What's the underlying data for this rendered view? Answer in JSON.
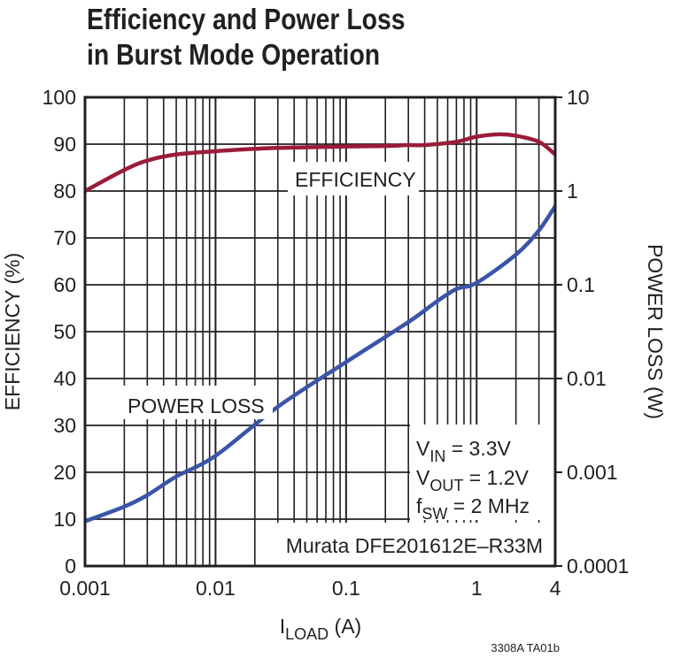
{
  "chart_data": {
    "type": "line",
    "title_line1": "Efficiency and Power Loss",
    "title_line2": "in Burst Mode Operation",
    "xlabel_main": "I",
    "xlabel_sub": "LOAD",
    "xlabel_unit": " (A)",
    "ylabel_left": "EFFICIENCY (%)",
    "ylabel_right": "POWER LOSS (W)",
    "x_scale": "log",
    "xlim": [
      0.001,
      4
    ],
    "ylim_left": [
      0,
      100
    ],
    "ylim_right": [
      0.0001,
      10
    ],
    "y_right_scale": "log",
    "x_ticks": [
      {
        "v": 0.001,
        "label": "0.001"
      },
      {
        "v": 0.01,
        "label": "0.01"
      },
      {
        "v": 0.1,
        "label": "0.1"
      },
      {
        "v": 1,
        "label": "1"
      },
      {
        "v": 4,
        "label": "4"
      }
    ],
    "y_left_ticks": [
      "0",
      "10",
      "20",
      "30",
      "40",
      "50",
      "60",
      "70",
      "80",
      "90",
      "100"
    ],
    "y_right_ticks": [
      {
        "v": 0.0001,
        "label": "0.0001"
      },
      {
        "v": 0.001,
        "label": "0.001"
      },
      {
        "v": 0.01,
        "label": "0.01"
      },
      {
        "v": 0.1,
        "label": "0.1"
      },
      {
        "v": 1,
        "label": "1"
      },
      {
        "v": 10,
        "label": "10"
      }
    ],
    "grid": true,
    "colors": {
      "efficiency": "#9b1b3a",
      "power_loss": "#3a55a8",
      "grid": "#231f20"
    },
    "series": [
      {
        "name": "EFFICIENCY",
        "axis": "left",
        "x": [
          0.001,
          0.002,
          0.003,
          0.005,
          0.01,
          0.02,
          0.03,
          0.1,
          0.2,
          0.3,
          0.4,
          0.7,
          1,
          1.5,
          2,
          3,
          4
        ],
        "y": [
          80,
          84.5,
          86.5,
          87.8,
          88.5,
          89,
          89.2,
          89.5,
          89.6,
          89.8,
          89.8,
          90.5,
          91.6,
          92.1,
          91.8,
          90.5,
          87.8
        ]
      },
      {
        "name": "POWER LOSS",
        "axis": "right",
        "x": [
          0.001,
          0.002,
          0.003,
          0.005,
          0.01,
          0.03,
          0.1,
          0.3,
          0.5,
          0.7,
          1,
          2,
          3,
          4
        ],
        "y": [
          0.0003,
          0.00043,
          0.00057,
          0.0009,
          0.0015,
          0.005,
          0.015,
          0.04,
          0.067,
          0.09,
          0.105,
          0.21,
          0.38,
          0.69
        ]
      }
    ],
    "annotations": {
      "vin_main": "V",
      "vin_sub": "IN",
      "vin_rest": " = 3.3V",
      "vout_main": "V",
      "vout_sub": "OUT",
      "vout_rest": " = 1.2V",
      "fsw_main": "f",
      "fsw_sub": "SW",
      "fsw_rest": " = 2 MHz",
      "inductor": "Murata DFE201612E–R33M"
    },
    "figure_id": "3308A TA01b"
  }
}
